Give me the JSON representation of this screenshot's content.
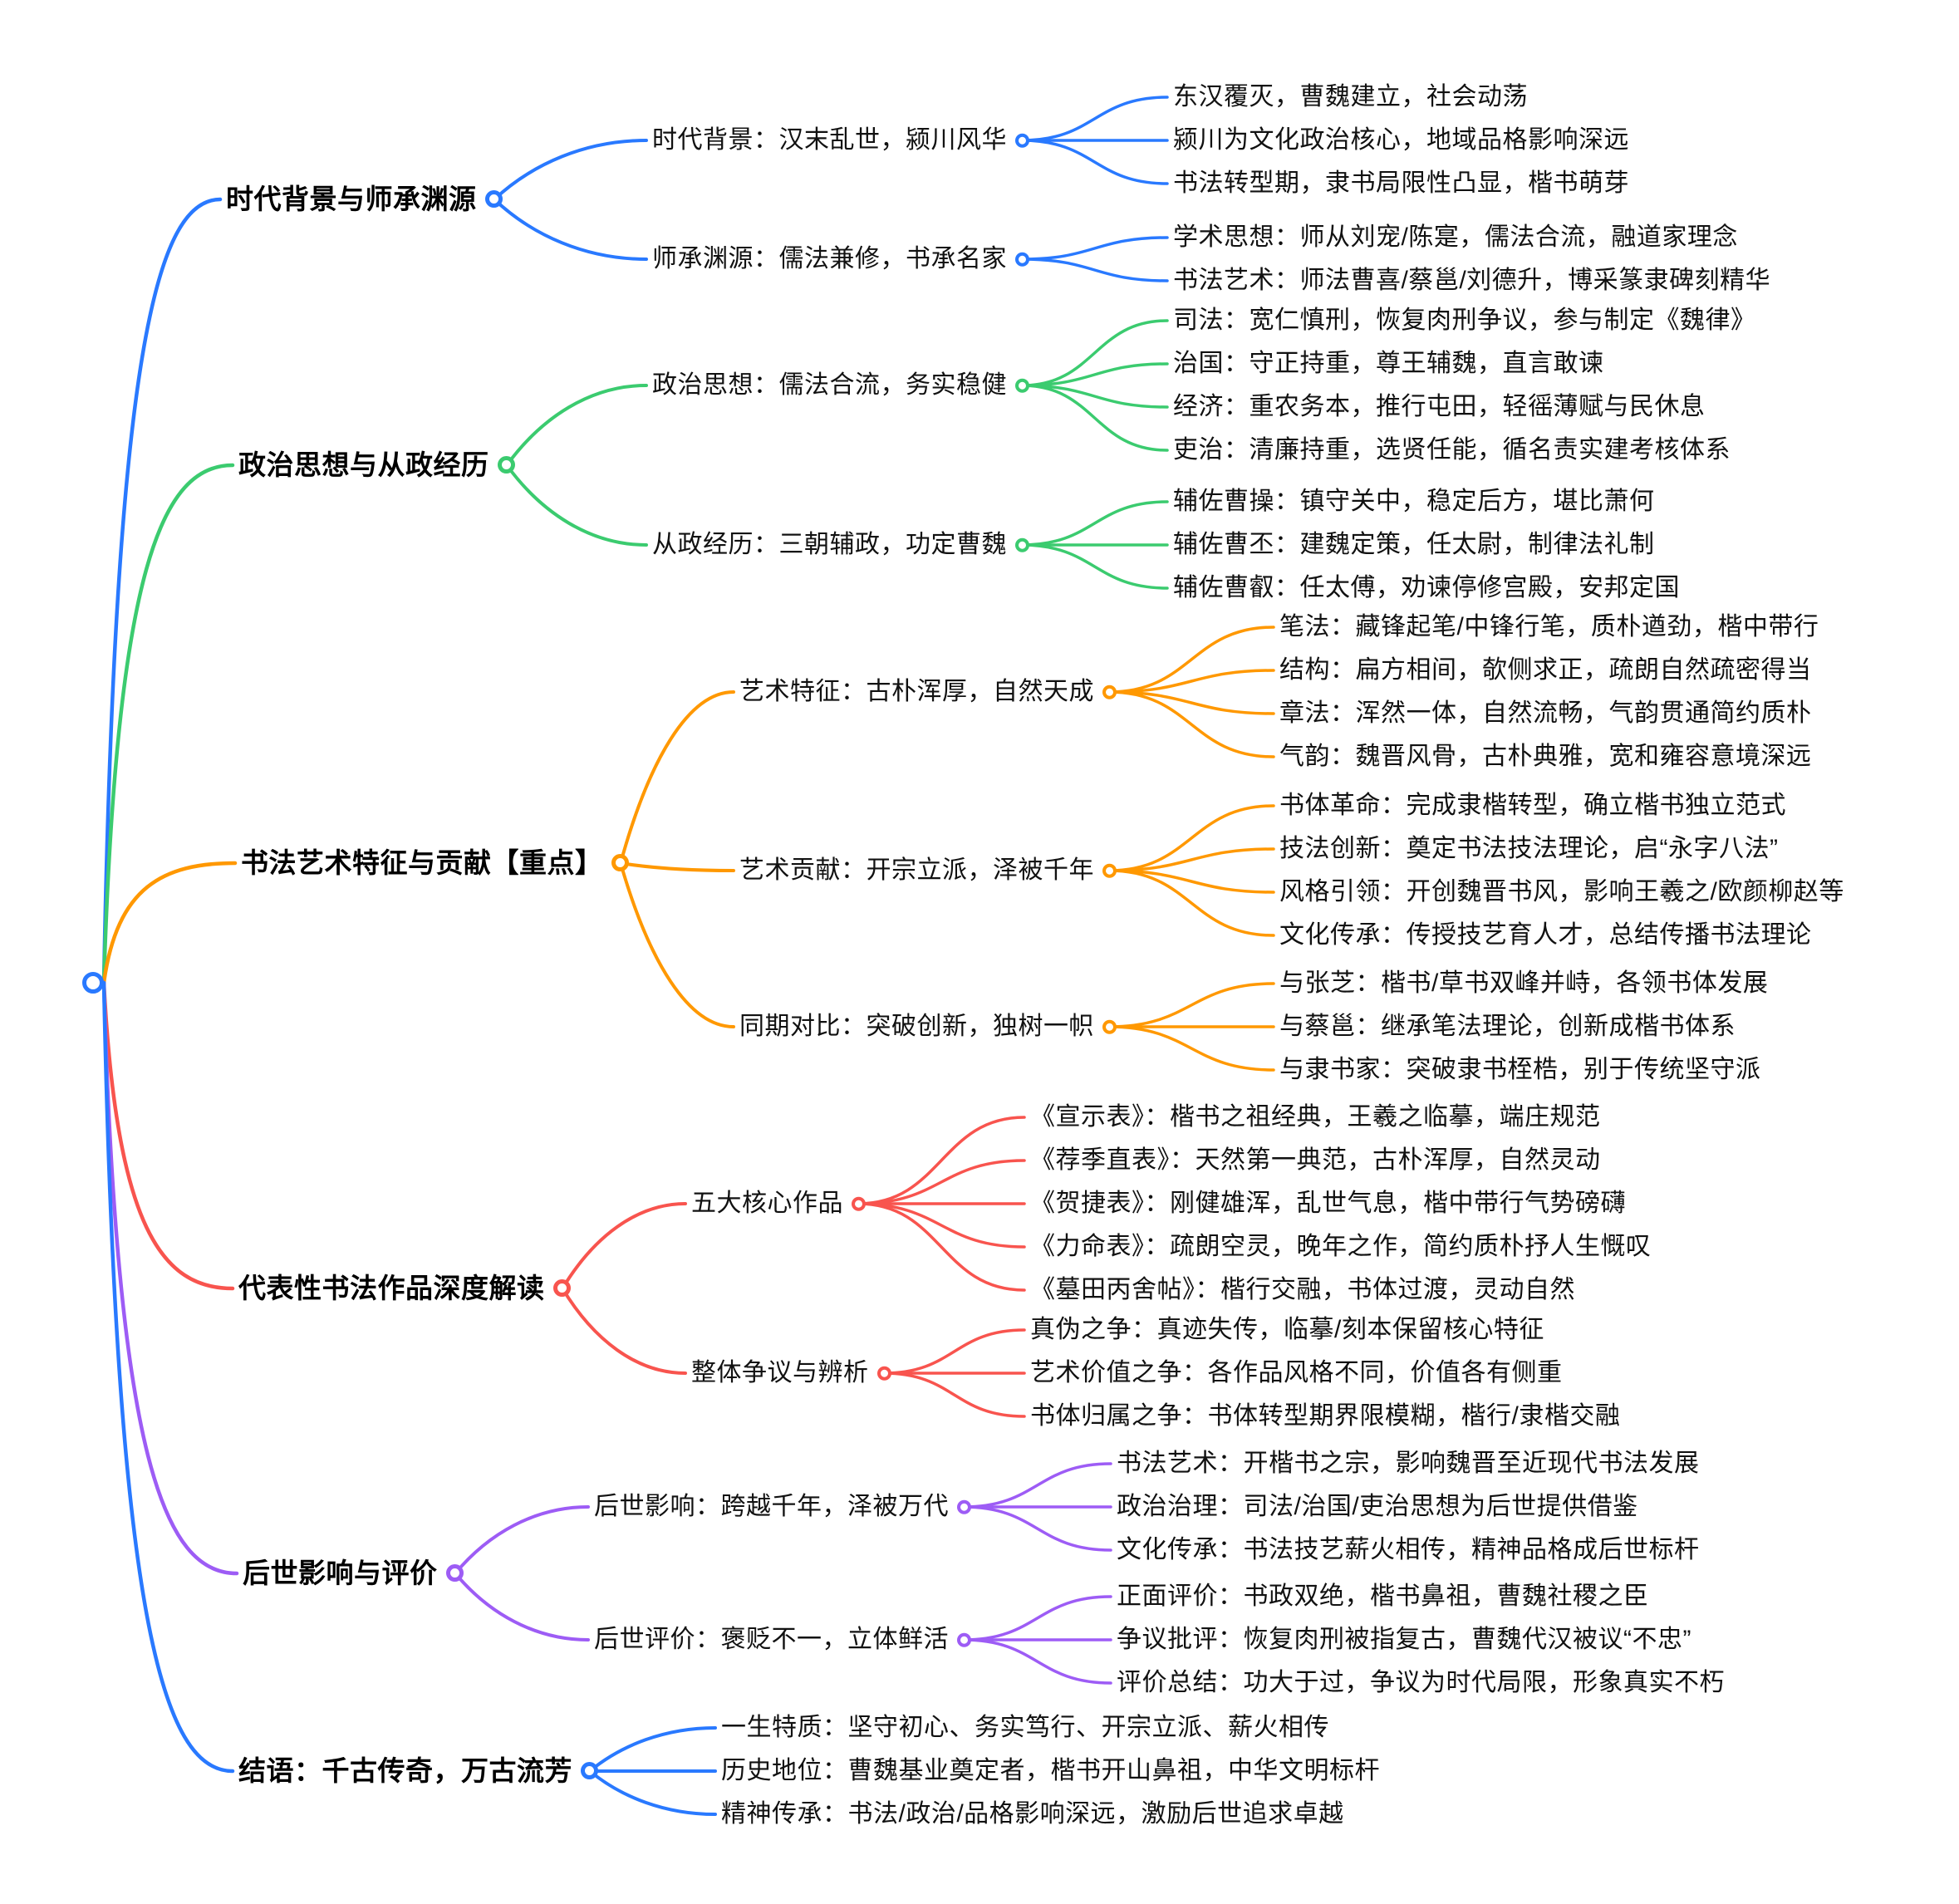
{
  "branches": [
    {
      "label": "时代背景与师承渊源",
      "color": "#2979ff",
      "children": [
        {
          "label": "时代背景：汉末乱世，颍川风华",
          "children": [
            "东汉覆灭，曹魏建立，社会动荡",
            "颍川为文化政治核心，地域品格影响深远",
            "书法转型期，隶书局限性凸显，楷书萌芽"
          ]
        },
        {
          "label": "师承渊源：儒法兼修，书承名家",
          "children": [
            "学术思想：师从刘宠/陈寔，儒法合流，融道家理念",
            "书法艺术：师法曹喜/蔡邕/刘德升，博采篆隶碑刻精华"
          ]
        }
      ]
    },
    {
      "label": "政治思想与从政经历",
      "color": "#3bcb6f",
      "children": [
        {
          "label": "政治思想：儒法合流，务实稳健",
          "children": [
            "司法：宽仁慎刑，恢复肉刑争议，参与制定《魏律》",
            "治国：守正持重，尊王辅魏，直言敢谏",
            "经济：重农务本，推行屯田，轻徭薄赋与民休息",
            "吏治：清廉持重，选贤任能，循名责实建考核体系"
          ]
        },
        {
          "label": "从政经历：三朝辅政，功定曹魏",
          "children": [
            "辅佐曹操：镇守关中，稳定后方，堪比萧何",
            "辅佐曹丕：建魏定策，任太尉，制律法礼制",
            "辅佐曹叡：任太傅，劝谏停修宫殿，安邦定国"
          ]
        }
      ]
    },
    {
      "label": "书法艺术特征与贡献【重点】",
      "color": "#ff9800",
      "children": [
        {
          "label": "艺术特征：古朴浑厚，自然天成",
          "children": [
            "笔法：藏锋起笔/中锋行笔，质朴遒劲，楷中带行",
            "结构：扁方相间，欹侧求正，疏朗自然疏密得当",
            "章法：浑然一体，自然流畅，气韵贯通简约质朴",
            "气韵：魏晋风骨，古朴典雅，宽和雍容意境深远"
          ]
        },
        {
          "label": "艺术贡献：开宗立派，泽被千年",
          "children": [
            "书体革命：完成隶楷转型，确立楷书独立范式",
            "技法创新：奠定书法技法理论，启“永字八法”",
            "风格引领：开创魏晋书风，影响王羲之/欧颜柳赵等",
            "文化传承：传授技艺育人才，总结传播书法理论"
          ]
        },
        {
          "label": "同期对比：突破创新，独树一帜",
          "children": [
            "与张芝：楷书/草书双峰并峙，各领书体发展",
            "与蔡邕：继承笔法理论，创新成楷书体系",
            "与隶书家：突破隶书桎梏，别于传统坚守派"
          ]
        }
      ]
    },
    {
      "label": "代表性书法作品深度解读",
      "color": "#f8544e",
      "children": [
        {
          "label": "五大核心作品",
          "children": [
            "《宣示表》：楷书之祖经典，王羲之临摹，端庄规范",
            "《荐季直表》：天然第一典范，古朴浑厚，自然灵动",
            "《贺捷表》：刚健雄浑，乱世气息，楷中带行气势磅礴",
            "《力命表》：疏朗空灵，晚年之作，简约质朴抒人生慨叹",
            "《墓田丙舍帖》：楷行交融，书体过渡，灵动自然"
          ]
        },
        {
          "label": "整体争议与辨析",
          "children": [
            "真伪之争：真迹失传，临摹/刻本保留核心特征",
            "艺术价值之争：各作品风格不同，价值各有侧重",
            "书体归属之争：书体转型期界限模糊，楷行/隶楷交融"
          ]
        }
      ]
    },
    {
      "label": "后世影响与评价",
      "color": "#9d5cf5",
      "children": [
        {
          "label": "后世影响：跨越千年，泽被万代",
          "children": [
            "书法艺术：开楷书之宗，影响魏晋至近现代书法发展",
            "政治治理：司法/治国/吏治思想为后世提供借鉴",
            "文化传承：书法技艺薪火相传，精神品格成后世标杆"
          ]
        },
        {
          "label": "后世评价：褒贬不一，立体鲜活",
          "children": [
            "正面评价：书政双绝，楷书鼻祖，曹魏社稷之臣",
            "争议批评：恢复肉刑被指复古，曹魏代汉被议“不忠”",
            "评价总结：功大于过，争议为时代局限，形象真实不朽"
          ]
        }
      ]
    },
    {
      "label": "结语：千古传奇，万古流芳",
      "color": "#2979ff",
      "children": [
        {
          "label": "一生特质：坚守初心、务实笃行、开宗立派、薪火相传",
          "children": []
        },
        {
          "label": "历史地位：曹魏基业奠定者，楷书开山鼻祖，中华文明标杆",
          "children": []
        },
        {
          "label": "精神传承：书法/政治/品格影响深远，激励后世追求卓越",
          "children": []
        }
      ]
    }
  ]
}
